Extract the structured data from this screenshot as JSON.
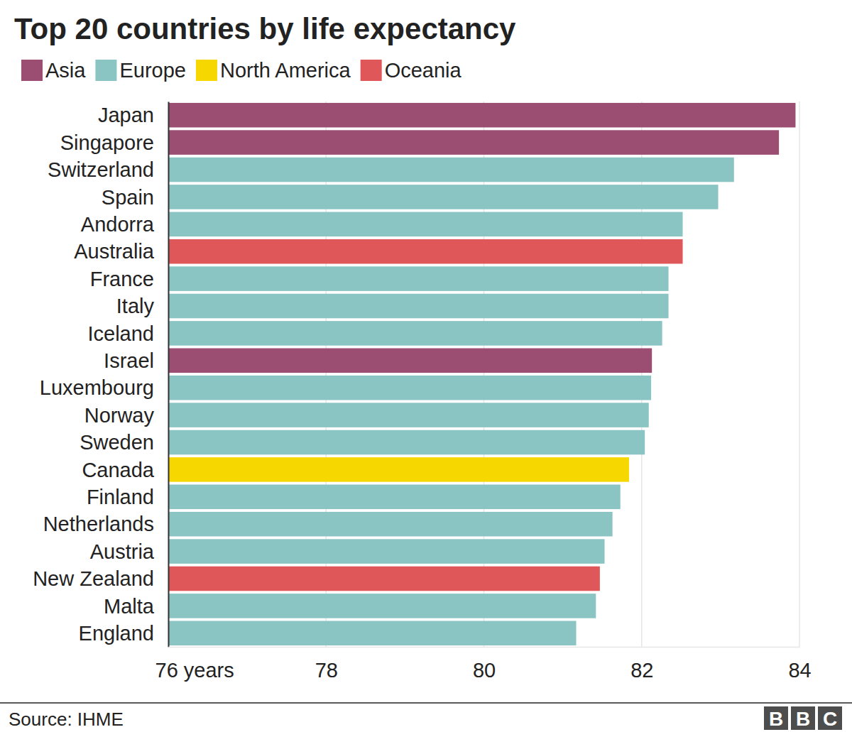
{
  "chart_data": {
    "type": "bar",
    "orientation": "horizontal",
    "title": "Top 20 countries by life expectancy",
    "categories": [
      "Japan",
      "Singapore",
      "Switzerland",
      "Spain",
      "Andorra",
      "Australia",
      "France",
      "Italy",
      "Iceland",
      "Israel",
      "Luxembourg",
      "Norway",
      "Sweden",
      "Canada",
      "Finland",
      "Netherlands",
      "Austria",
      "New Zealand",
      "Malta",
      "England"
    ],
    "series": [
      {
        "name": "Asia",
        "color": "#9b4d72",
        "values": [
          83.95,
          83.74,
          null,
          null,
          null,
          null,
          null,
          null,
          null,
          82.13,
          null,
          null,
          null,
          null,
          null,
          null,
          null,
          null,
          null,
          null
        ]
      },
      {
        "name": "Europe",
        "color": "#8ac4c3",
        "values": [
          null,
          null,
          83.17,
          82.97,
          82.52,
          null,
          82.34,
          82.34,
          82.26,
          null,
          82.12,
          82.09,
          82.04,
          null,
          81.73,
          81.63,
          81.53,
          null,
          81.42,
          81.17
        ]
      },
      {
        "name": "North America",
        "color": "#f6d800",
        "values": [
          null,
          null,
          null,
          null,
          null,
          null,
          null,
          null,
          null,
          null,
          null,
          null,
          null,
          81.84,
          null,
          null,
          null,
          null,
          null,
          null
        ]
      },
      {
        "name": "Oceania",
        "color": "#e05759",
        "values": [
          null,
          null,
          null,
          null,
          null,
          82.52,
          null,
          null,
          null,
          null,
          null,
          null,
          null,
          null,
          null,
          null,
          null,
          81.47,
          null,
          null
        ]
      }
    ],
    "xlim": [
      76,
      84
    ],
    "xticks": [
      {
        "value": 76,
        "label": "76 years"
      },
      78,
      80,
      82,
      84
    ],
    "grid": true,
    "legend": "top-left",
    "source": "Source: IHME",
    "logo": "BBC"
  }
}
